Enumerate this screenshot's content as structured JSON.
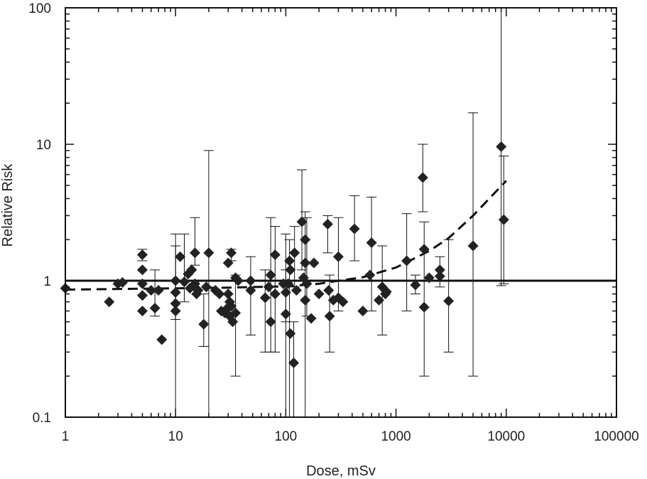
{
  "chart_data": {
    "type": "scatter",
    "title": "",
    "xlabel": "Dose, mSv",
    "ylabel": "Relative Risk",
    "x_scale": "log",
    "y_scale": "log",
    "xlim": [
      1,
      100000
    ],
    "ylim": [
      0.1,
      100
    ],
    "x_ticks": [
      {
        "value": 1,
        "label": "1"
      },
      {
        "value": 10,
        "label": "10"
      },
      {
        "value": 100,
        "label": "100"
      },
      {
        "value": 1000,
        "label": "1000"
      },
      {
        "value": 10000,
        "label": "10000"
      },
      {
        "value": 100000,
        "label": "100000"
      }
    ],
    "y_ticks": [
      {
        "value": 0.1,
        "label": "0.1"
      },
      {
        "value": 1,
        "label": "1"
      },
      {
        "value": 10,
        "label": "10"
      },
      {
        "value": 100,
        "label": "100"
      }
    ],
    "grid": false,
    "legend": "none",
    "colors": {
      "points": "#222222",
      "lines": "#111111",
      "axes": "#111111"
    },
    "reference_line": {
      "y": 1,
      "style": "solid"
    },
    "fitted_curve": {
      "style": "dashed",
      "points": [
        {
          "x": 1,
          "y": 0.86
        },
        {
          "x": 3,
          "y": 0.87
        },
        {
          "x": 10,
          "y": 0.88
        },
        {
          "x": 30,
          "y": 0.89
        },
        {
          "x": 100,
          "y": 0.91
        },
        {
          "x": 200,
          "y": 0.95
        },
        {
          "x": 300,
          "y": 1.0
        },
        {
          "x": 500,
          "y": 1.06
        },
        {
          "x": 1000,
          "y": 1.25
        },
        {
          "x": 2000,
          "y": 1.65
        },
        {
          "x": 3000,
          "y": 2.05
        },
        {
          "x": 5000,
          "y": 3.0
        },
        {
          "x": 10000,
          "y": 5.4
        }
      ]
    },
    "series": [
      {
        "marker": "diamond",
        "points": [
          {
            "x": 1,
            "y": 0.88
          },
          {
            "x": 2.5,
            "y": 0.7
          },
          {
            "x": 3,
            "y": 0.95
          },
          {
            "x": 3.3,
            "y": 0.97
          },
          {
            "x": 5,
            "y": 1.55,
            "lo": 1.4,
            "hi": 1.7
          },
          {
            "x": 5,
            "y": 1.2
          },
          {
            "x": 5,
            "y": 0.95
          },
          {
            "x": 5,
            "y": 0.78
          },
          {
            "x": 5,
            "y": 0.6
          },
          {
            "x": 6,
            "y": 0.85
          },
          {
            "x": 6.5,
            "y": 0.63,
            "lo": 0.55,
            "hi": 1.2
          },
          {
            "x": 7,
            "y": 0.85
          },
          {
            "x": 7.5,
            "y": 0.37
          },
          {
            "x": 10,
            "y": 1.0,
            "lo": 0.1,
            "hi": 2.2
          },
          {
            "x": 10,
            "y": 0.82
          },
          {
            "x": 10,
            "y": 0.68
          },
          {
            "x": 10,
            "y": 0.6,
            "lo": 0.52,
            "hi": 1.8
          },
          {
            "x": 11,
            "y": 1.5
          },
          {
            "x": 12,
            "y": 0.98,
            "lo": 0.7,
            "hi": 2.2
          },
          {
            "x": 13,
            "y": 1.12
          },
          {
            "x": 13.5,
            "y": 0.88
          },
          {
            "x": 14,
            "y": 1.2
          },
          {
            "x": 15,
            "y": 1.6,
            "lo": 1.3,
            "hi": 2.9
          },
          {
            "x": 15,
            "y": 0.95
          },
          {
            "x": 15.5,
            "y": 0.8
          },
          {
            "x": 16,
            "y": 0.85
          },
          {
            "x": 18,
            "y": 0.48,
            "lo": 0.33,
            "hi": 0.8
          },
          {
            "x": 19,
            "y": 0.9
          },
          {
            "x": 20,
            "y": 1.6,
            "lo": 0.1,
            "hi": 9.0
          },
          {
            "x": 23,
            "y": 0.85
          },
          {
            "x": 25,
            "y": 0.8
          },
          {
            "x": 26,
            "y": 0.6
          },
          {
            "x": 28,
            "y": 0.58
          },
          {
            "x": 29,
            "y": 0.62
          },
          {
            "x": 30,
            "y": 1.35
          },
          {
            "x": 30,
            "y": 0.8
          },
          {
            "x": 31,
            "y": 0.7
          },
          {
            "x": 31,
            "y": 0.55
          },
          {
            "x": 32,
            "y": 1.6,
            "lo": 1.4,
            "hi": 1.7
          },
          {
            "x": 32,
            "y": 0.65
          },
          {
            "x": 33,
            "y": 0.5
          },
          {
            "x": 35,
            "y": 0.58,
            "lo": 0.2,
            "hi": 1.1
          },
          {
            "x": 35,
            "y": 1.05
          },
          {
            "x": 37,
            "y": 1.0
          },
          {
            "x": 48,
            "y": 1.0,
            "lo": 0.4,
            "hi": 1.5
          },
          {
            "x": 48,
            "y": 0.85
          },
          {
            "x": 65,
            "y": 0.75,
            "lo": 0.3,
            "hi": 1.2
          },
          {
            "x": 70,
            "y": 0.9
          },
          {
            "x": 73,
            "y": 1.1,
            "lo": 0.3,
            "hi": 2.9
          },
          {
            "x": 73,
            "y": 0.5
          },
          {
            "x": 80,
            "y": 1.55,
            "lo": 0.3,
            "hi": 2.5
          },
          {
            "x": 80,
            "y": 0.8
          },
          {
            "x": 95,
            "y": 0.95
          },
          {
            "x": 100,
            "y": 0.82,
            "lo": 0.5,
            "hi": 2.2
          },
          {
            "x": 100,
            "y": 0.57,
            "lo": 0.1,
            "hi": 1.2
          },
          {
            "x": 105,
            "y": 0.95
          },
          {
            "x": 108,
            "y": 1.4,
            "lo": 0.1,
            "hi": 2.0
          },
          {
            "x": 110,
            "y": 1.2
          },
          {
            "x": 110,
            "y": 0.41
          },
          {
            "x": 118,
            "y": 0.25,
            "lo": 0.1,
            "hi": 0.5
          },
          {
            "x": 120,
            "y": 1.6,
            "lo": 0.9,
            "hi": 2.5
          },
          {
            "x": 125,
            "y": 0.85
          },
          {
            "x": 140,
            "y": 2.7,
            "lo": 1.2,
            "hi": 6.5
          },
          {
            "x": 145,
            "y": 1.05
          },
          {
            "x": 150,
            "y": 2.0,
            "lo": 0.1,
            "hi": 3.2
          },
          {
            "x": 150,
            "y": 1.35
          },
          {
            "x": 150,
            "y": 0.72
          },
          {
            "x": 155,
            "y": 0.95,
            "lo": 0.55,
            "hi": 2.9
          },
          {
            "x": 170,
            "y": 0.53
          },
          {
            "x": 180,
            "y": 1.35
          },
          {
            "x": 200,
            "y": 0.8
          },
          {
            "x": 240,
            "y": 2.6,
            "lo": 1.6,
            "hi": 3.0
          },
          {
            "x": 245,
            "y": 0.85
          },
          {
            "x": 250,
            "y": 0.55,
            "lo": 0.3,
            "hi": 1.1
          },
          {
            "x": 270,
            "y": 0.72
          },
          {
            "x": 300,
            "y": 1.5,
            "lo": 0.6,
            "hi": 2.9
          },
          {
            "x": 300,
            "y": 0.75
          },
          {
            "x": 330,
            "y": 0.7
          },
          {
            "x": 420,
            "y": 2.4,
            "lo": 1.4,
            "hi": 4.2
          },
          {
            "x": 500,
            "y": 0.6
          },
          {
            "x": 580,
            "y": 1.1
          },
          {
            "x": 600,
            "y": 1.9,
            "lo": 0.6,
            "hi": 4.1
          },
          {
            "x": 700,
            "y": 0.72
          },
          {
            "x": 750,
            "y": 0.9,
            "lo": 0.4,
            "hi": 1.8
          },
          {
            "x": 800,
            "y": 0.8
          },
          {
            "x": 820,
            "y": 0.83
          },
          {
            "x": 1250,
            "y": 1.4,
            "lo": 0.6,
            "hi": 3.1
          },
          {
            "x": 1500,
            "y": 0.93,
            "lo": 0.8,
            "hi": 1.1
          },
          {
            "x": 1750,
            "y": 5.7,
            "lo": 3.2,
            "hi": 10.0
          },
          {
            "x": 1800,
            "y": 1.7,
            "lo": 0.2,
            "hi": 2.7
          },
          {
            "x": 1800,
            "y": 0.64
          },
          {
            "x": 2000,
            "y": 1.05
          },
          {
            "x": 2500,
            "y": 1.2,
            "lo": 0.9,
            "hi": 1.5
          },
          {
            "x": 2500,
            "y": 1.08
          },
          {
            "x": 3000,
            "y": 0.71,
            "lo": 0.3,
            "hi": 2.0
          },
          {
            "x": 5000,
            "y": 1.8,
            "lo": 0.2,
            "hi": 17.0
          },
          {
            "x": 9000,
            "y": 9.6,
            "lo": 0.92,
            "hi": 100.0
          },
          {
            "x": 9500,
            "y": 2.8,
            "lo": 0.95,
            "hi": 8.2
          }
        ]
      }
    ]
  }
}
